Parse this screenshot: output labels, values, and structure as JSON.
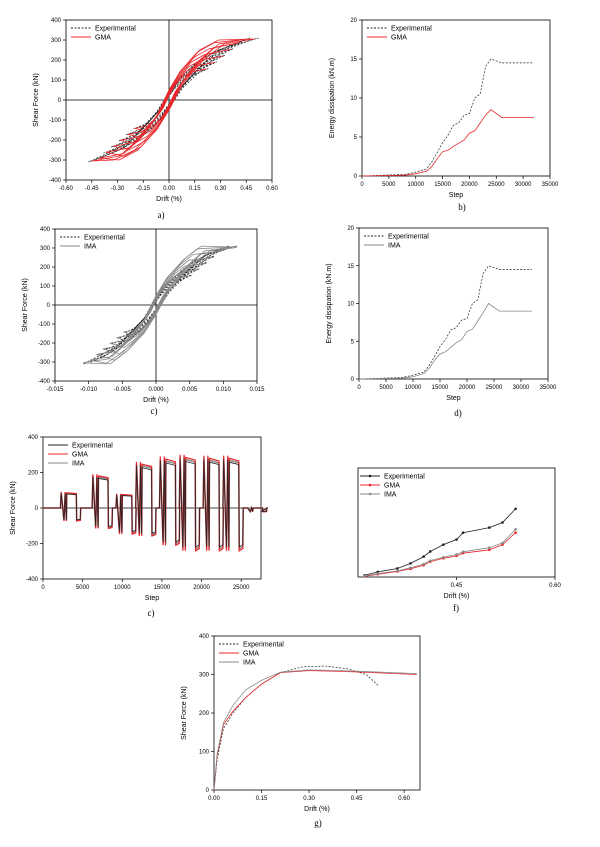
{
  "colors": {
    "experimental": "#222222",
    "gma": "#e8262b",
    "ima": "#8a8a8a",
    "axis": "#000000"
  },
  "chart_data": [
    {
      "id": "a",
      "type": "line",
      "caption": "a)",
      "xlabel": "Drift (%)",
      "ylabel": "Shear Force (kN)",
      "xlim": [
        -0.6,
        0.6
      ],
      "ylim": [
        -400,
        400
      ],
      "xticks": [
        "-0.60",
        "-0.45",
        "-0.30",
        "-0.15",
        "0.00",
        "0.15",
        "0.30",
        "0.45",
        "0.60"
      ],
      "yticks": [
        "-400",
        "-300",
        "-200",
        "-100",
        "0",
        "100",
        "200",
        "300",
        "400"
      ],
      "legend": [
        "Experimental",
        "GMA"
      ],
      "series": [
        {
          "name": "Experimental",
          "style": "dashed",
          "x": [
            -0.32,
            -0.2,
            -0.08,
            0,
            0.08,
            0.2,
            0.32,
            0.48,
            0.52
          ],
          "y": [
            -250,
            -200,
            -120,
            -40,
            60,
            160,
            250,
            300,
            310
          ]
        },
        {
          "name": "GMA",
          "style": "solid",
          "x": [
            -0.32,
            -0.2,
            -0.08,
            0,
            0.08,
            0.2,
            0.32,
            0.46,
            0.5
          ],
          "y": [
            -300,
            -250,
            -150,
            -50,
            80,
            200,
            280,
            300,
            305
          ]
        }
      ]
    },
    {
      "id": "b",
      "type": "line",
      "caption": "b)",
      "xlabel": "Step",
      "ylabel": "Energy dissipation (kN.m)",
      "xlim": [
        0,
        35000
      ],
      "ylim": [
        0,
        20
      ],
      "xticks": [
        "0",
        "5000",
        "10000",
        "15000",
        "20000",
        "25000",
        "30000",
        "35000"
      ],
      "yticks": [
        "0",
        "5",
        "10",
        "15",
        "20"
      ],
      "legend": [
        "Experimental",
        "GMA"
      ],
      "series": [
        {
          "name": "Experimental",
          "style": "dashed",
          "x": [
            0,
            8000,
            10000,
            12000,
            13000,
            14000,
            15000,
            16000,
            17000,
            18000,
            19000,
            20000,
            21000,
            22000,
            23000,
            24000,
            26000,
            32000
          ],
          "y": [
            0,
            0.2,
            0.5,
            0.9,
            1.8,
            3,
            4.3,
            5.2,
            6.5,
            6.8,
            7.8,
            8,
            10,
            10.5,
            14,
            15,
            14.5,
            14.5
          ]
        },
        {
          "name": "GMA",
          "style": "solid",
          "x": [
            0,
            8000,
            10000,
            12000,
            13000,
            14000,
            15000,
            16000,
            17000,
            18000,
            19000,
            20000,
            21000,
            22000,
            23000,
            24000,
            26000,
            32000
          ],
          "y": [
            0,
            0.1,
            0.3,
            0.6,
            1.2,
            2.2,
            3.1,
            3.3,
            3.8,
            4.2,
            4.6,
            5.5,
            5.8,
            6.8,
            7.8,
            8.5,
            7.5,
            7.5
          ]
        }
      ]
    },
    {
      "id": "c",
      "type": "line",
      "caption": "c)",
      "xlabel": "Drift (%)",
      "ylabel": "Shear Force (kN)",
      "xlim": [
        -0.015,
        0.015
      ],
      "ylim": [
        -400,
        400
      ],
      "xticks": [
        "-0.015",
        "-0.010",
        "-0.005",
        "0.000",
        "0.005",
        "0.010",
        "0.015"
      ],
      "yticks": [
        "-400",
        "-300",
        "-200",
        "-100",
        "0",
        "100",
        "200",
        "300",
        "400"
      ],
      "legend": [
        "Experimental",
        "IMA"
      ],
      "series": [
        {
          "name": "Experimental",
          "style": "dashed",
          "x": [
            -0.008,
            -0.005,
            -0.002,
            0,
            0.002,
            0.005,
            0.008,
            0.011,
            0.012
          ],
          "y": [
            -260,
            -200,
            -120,
            -40,
            70,
            170,
            260,
            305,
            310
          ]
        },
        {
          "name": "IMA",
          "style": "solid",
          "x": [
            -0.0075,
            -0.005,
            -0.002,
            0,
            0.002,
            0.005,
            0.008,
            0.0115,
            0.012
          ],
          "y": [
            -310,
            -250,
            -150,
            -50,
            80,
            200,
            285,
            300,
            305
          ]
        }
      ]
    },
    {
      "id": "d",
      "type": "line",
      "caption": "d)",
      "xlabel": "Step",
      "ylabel": "Energy dissipation (kN.m)",
      "xlim": [
        0,
        35000
      ],
      "ylim": [
        0,
        20
      ],
      "xticks": [
        "0",
        "5000",
        "10000",
        "15000",
        "20000",
        "25000",
        "30000",
        "35000"
      ],
      "yticks": [
        "0",
        "5",
        "10",
        "15",
        "20"
      ],
      "legend": [
        "Experimental",
        "IMA"
      ],
      "series": [
        {
          "name": "Experimental",
          "style": "dashed",
          "x": [
            0,
            8000,
            10000,
            12000,
            13000,
            14000,
            15000,
            16000,
            17000,
            18000,
            19000,
            20000,
            21000,
            22000,
            23000,
            24000,
            26000,
            32000
          ],
          "y": [
            0,
            0.2,
            0.5,
            0.9,
            1.8,
            3,
            4.3,
            5.2,
            6.5,
            6.8,
            7.8,
            8,
            10,
            10.5,
            14,
            15,
            14.5,
            14.5
          ]
        },
        {
          "name": "IMA",
          "style": "solid",
          "x": [
            0,
            8000,
            10000,
            12000,
            13000,
            14000,
            15000,
            16000,
            17000,
            18000,
            19000,
            20000,
            21000,
            22000,
            23000,
            24000,
            26000,
            32000
          ],
          "y": [
            0,
            0.1,
            0.3,
            0.7,
            1.4,
            2.5,
            3.3,
            3.6,
            4.2,
            4.8,
            5.2,
            6.3,
            6.6,
            7.7,
            8.8,
            10,
            9,
            9
          ]
        }
      ]
    },
    {
      "id": "e",
      "type": "line",
      "caption": "c)",
      "xlabel": "Step",
      "ylabel": "Shear Force (kN)",
      "xlim": [
        0,
        27500
      ],
      "ylim": [
        -400,
        400
      ],
      "xticks": [
        "0",
        "5000",
        "10000",
        "15000",
        "20000",
        "25000"
      ],
      "yticks": [
        "-400",
        "-200",
        "0",
        "200",
        "400"
      ],
      "legend": [
        "Experimental",
        "GMA",
        "IMA"
      ],
      "levels": [
        [
          2500,
          90,
          -70
        ],
        [
          6500,
          190,
          -110
        ],
        [
          9500,
          80,
          -140
        ],
        [
          12000,
          260,
          -150
        ],
        [
          15000,
          290,
          -200
        ],
        [
          17500,
          300,
          -230
        ],
        [
          20500,
          295,
          -230
        ],
        [
          23000,
          295,
          -230
        ],
        [
          26000,
          0,
          -20
        ]
      ],
      "series": [
        {
          "name": "Experimental"
        },
        {
          "name": "GMA"
        },
        {
          "name": "IMA"
        }
      ]
    },
    {
      "id": "f",
      "type": "line",
      "caption": "f)",
      "xlabel": "Drift (%)",
      "xlim": [
        0.3,
        0.6
      ],
      "ylim": [
        0,
        320
      ],
      "xticks": [
        "0.45",
        "0.60"
      ],
      "legend": [
        "Experimental",
        "GMA",
        "IMA"
      ],
      "series": [
        {
          "name": "Experimental",
          "x": [
            0.31,
            0.33,
            0.36,
            0.38,
            0.4,
            0.41,
            0.43,
            0.45,
            0.46,
            0.5,
            0.52,
            0.54
          ],
          "y": [
            5,
            15,
            25,
            40,
            60,
            75,
            95,
            110,
            130,
            145,
            160,
            200
          ]
        },
        {
          "name": "GMA",
          "x": [
            0.31,
            0.33,
            0.36,
            0.38,
            0.4,
            0.41,
            0.43,
            0.45,
            0.46,
            0.5,
            0.52,
            0.54
          ],
          "y": [
            2,
            8,
            16,
            24,
            35,
            45,
            55,
            62,
            70,
            80,
            95,
            130
          ]
        },
        {
          "name": "IMA",
          "x": [
            0.31,
            0.33,
            0.36,
            0.38,
            0.4,
            0.41,
            0.43,
            0.45,
            0.46,
            0.5,
            0.52,
            0.54
          ],
          "y": [
            3,
            10,
            18,
            27,
            38,
            48,
            58,
            66,
            74,
            86,
            100,
            140
          ]
        }
      ]
    },
    {
      "id": "g",
      "type": "line",
      "caption": "g)",
      "xlabel": "Drift (%)",
      "ylabel": "Shear Force (kN)",
      "xlim": [
        0,
        0.65
      ],
      "ylim": [
        0,
        400
      ],
      "xticks": [
        "0.00",
        "0.15",
        "0.30",
        "0.45",
        "0.60"
      ],
      "yticks": [
        "0",
        "100",
        "200",
        "300",
        "400"
      ],
      "legend": [
        "Experimental",
        "GMA",
        "IMA"
      ],
      "series": [
        {
          "name": "Experimental",
          "style": "dashed",
          "x": [
            0,
            0.01,
            0.03,
            0.06,
            0.1,
            0.15,
            0.21,
            0.28,
            0.35,
            0.42,
            0.48,
            0.52
          ],
          "y": [
            0,
            80,
            160,
            200,
            240,
            275,
            305,
            320,
            322,
            315,
            300,
            270
          ]
        },
        {
          "name": "GMA",
          "style": "solid",
          "x": [
            0,
            0.01,
            0.03,
            0.06,
            0.1,
            0.15,
            0.21,
            0.3,
            0.4,
            0.5,
            0.64
          ],
          "y": [
            0,
            90,
            170,
            205,
            240,
            275,
            305,
            310,
            308,
            305,
            300
          ]
        },
        {
          "name": "IMA",
          "style": "solid",
          "x": [
            0,
            0.01,
            0.03,
            0.06,
            0.1,
            0.15,
            0.21,
            0.3,
            0.4,
            0.5,
            0.64
          ],
          "y": [
            0,
            95,
            175,
            220,
            260,
            285,
            306,
            312,
            310,
            307,
            302
          ]
        }
      ]
    }
  ]
}
